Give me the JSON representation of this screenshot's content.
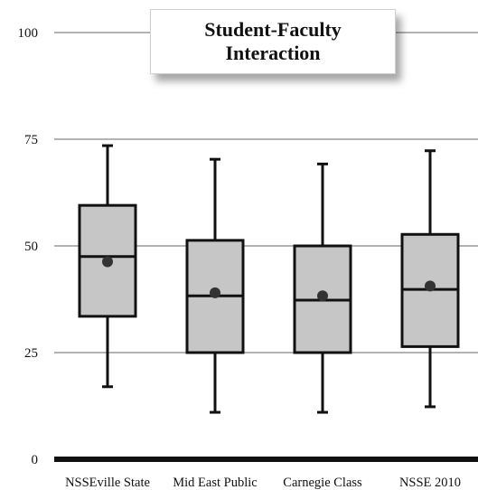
{
  "chart_data": {
    "type": "boxplot",
    "title_lines": [
      "Student-Faculty",
      "Interaction"
    ],
    "xlabel": "",
    "ylabel": "",
    "ylim": [
      0,
      100
    ],
    "yticks": [
      0,
      25,
      50,
      75,
      100
    ],
    "grid": true,
    "categories": [
      "NSSEville State",
      "Mid East Public",
      "Carnegie Class",
      "NSSE 2010"
    ],
    "boxes": [
      {
        "category": "NSSEville State",
        "whisker_low": 17,
        "q1": 33.5,
        "median": 47.5,
        "q3": 59.5,
        "whisker_high": 73.5,
        "mean": 46.3
      },
      {
        "category": "Mid East Public",
        "whisker_low": 11,
        "q1": 25,
        "median": 38.3,
        "q3": 51.3,
        "whisker_high": 70.3,
        "mean": 39
      },
      {
        "category": "Carnegie Class",
        "whisker_low": 11,
        "q1": 25,
        "median": 37.3,
        "q3": 50,
        "whisker_high": 69.2,
        "mean": 38.3
      },
      {
        "category": "NSSE 2010",
        "whisker_low": 12.3,
        "q1": 26.4,
        "median": 39.8,
        "q3": 52.7,
        "whisker_high": 72.3,
        "mean": 40.6
      }
    ],
    "colors": {
      "box_fill": "#c6c6c6",
      "stroke": "#111111",
      "grid": "#9a9a9a",
      "mean_marker": "#333333"
    }
  }
}
